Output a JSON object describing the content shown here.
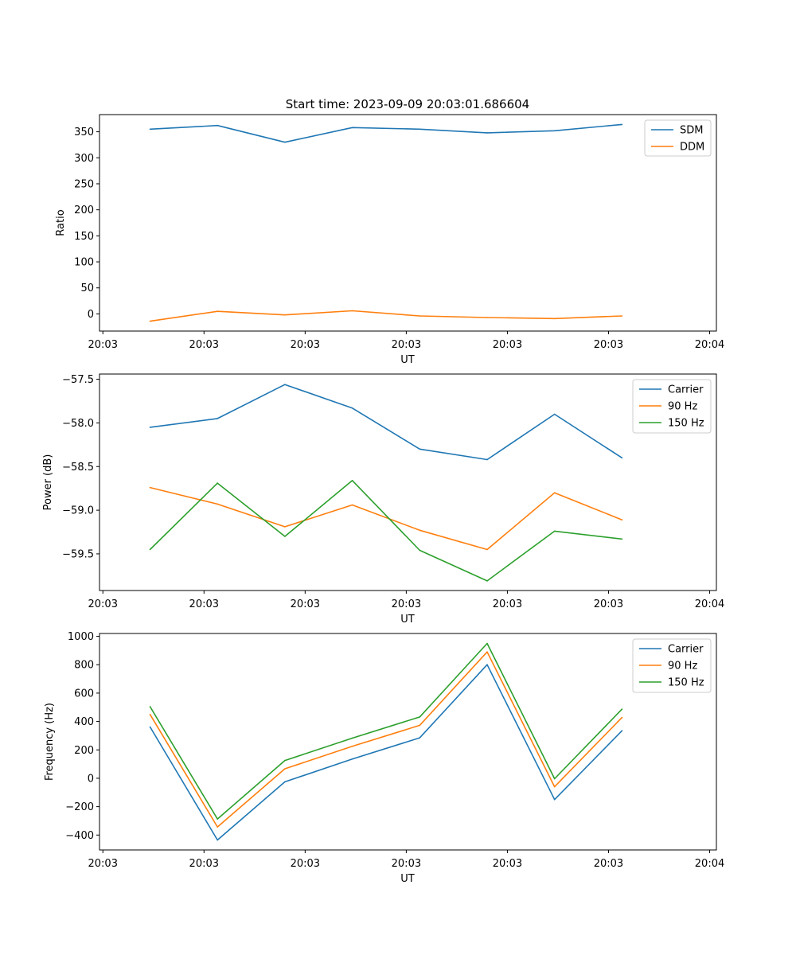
{
  "figure": {
    "title": "Start time: 2023-09-09 20:03:01.686604",
    "x_tick_labels": [
      "20:03",
      "20:03",
      "20:03",
      "20:03",
      "20:03",
      "20:03",
      "20:04"
    ]
  },
  "colors": {
    "blue": "#1f77b4",
    "orange": "#ff7f0e",
    "green": "#2ca02c",
    "axes": "#000000",
    "legend_border": "#cccccc"
  },
  "chart_data": [
    {
      "type": "line",
      "title": "Start time: 2023-09-09 20:03:01.686604",
      "xlabel": "UT",
      "ylabel": "Ratio",
      "x": [
        0,
        1,
        2,
        3,
        4,
        5,
        6,
        7
      ],
      "xlim": [
        -0.75,
        8.4
      ],
      "x_ticks": [
        -0.7,
        0.8,
        2.3,
        3.8,
        5.3,
        6.8,
        8.3
      ],
      "ylim": [
        -33,
        383
      ],
      "y_ticks": [
        0,
        50,
        100,
        150,
        200,
        250,
        300,
        350
      ],
      "y_tick_labels": [
        "0",
        "50",
        "100",
        "150",
        "200",
        "250",
        "300",
        "350"
      ],
      "legend_position": "top-right",
      "series": [
        {
          "name": "SDM",
          "color": "blue",
          "values": [
            355,
            362,
            330,
            358,
            355,
            348,
            352,
            364
          ]
        },
        {
          "name": "DDM",
          "color": "orange",
          "values": [
            -14,
            5,
            -2,
            6,
            -4,
            -7,
            -9,
            -4
          ]
        }
      ]
    },
    {
      "type": "line",
      "title": "",
      "xlabel": "UT",
      "ylabel": "Power (dB)",
      "x": [
        0,
        1,
        2,
        3,
        4,
        5,
        6,
        7
      ],
      "xlim": [
        -0.75,
        8.4
      ],
      "x_ticks": [
        -0.7,
        0.8,
        2.3,
        3.8,
        5.3,
        6.8,
        8.3
      ],
      "ylim": [
        -59.92,
        -57.44
      ],
      "y_ticks": [
        -59.5,
        -59.0,
        -58.5,
        -58.0,
        -57.5
      ],
      "y_tick_labels": [
        "−59.5",
        "−59.0",
        "−58.5",
        "−58.0",
        "−57.5"
      ],
      "legend_position": "top-right",
      "series": [
        {
          "name": "Carrier",
          "color": "blue",
          "values": [
            -58.05,
            -57.95,
            -57.56,
            -57.83,
            -58.3,
            -58.42,
            -57.9,
            -58.4
          ]
        },
        {
          "name": "90 Hz",
          "color": "orange",
          "values": [
            -58.74,
            -58.93,
            -59.19,
            -58.94,
            -59.23,
            -59.45,
            -58.8,
            -59.11
          ]
        },
        {
          "name": "150 Hz",
          "color": "green",
          "values": [
            -59.45,
            -58.69,
            -59.3,
            -58.66,
            -59.46,
            -59.81,
            -59.24,
            -59.33
          ]
        }
      ]
    },
    {
      "type": "line",
      "title": "",
      "xlabel": "UT",
      "ylabel": "Frequency (Hz)",
      "x": [
        0,
        1,
        2,
        3,
        4,
        5,
        6,
        7
      ],
      "xlim": [
        -0.75,
        8.4
      ],
      "x_ticks": [
        -0.7,
        0.8,
        2.3,
        3.8,
        5.3,
        6.8,
        8.3
      ],
      "ylim": [
        -505,
        1020
      ],
      "y_ticks": [
        -400,
        -200,
        0,
        200,
        400,
        600,
        800,
        1000
      ],
      "y_tick_labels": [
        "−400",
        "−200",
        "0",
        "200",
        "400",
        "600",
        "800",
        "1000"
      ],
      "legend_position": "top-right",
      "series": [
        {
          "name": "Carrier",
          "color": "blue",
          "values": [
            362,
            -435,
            -25,
            135,
            285,
            800,
            -150,
            335
          ]
        },
        {
          "name": "90 Hz",
          "color": "orange",
          "values": [
            450,
            -343,
            67,
            225,
            373,
            890,
            -60,
            428
          ]
        },
        {
          "name": "150 Hz",
          "color": "green",
          "values": [
            505,
            -287,
            125,
            283,
            432,
            950,
            -3,
            487
          ]
        }
      ]
    }
  ]
}
